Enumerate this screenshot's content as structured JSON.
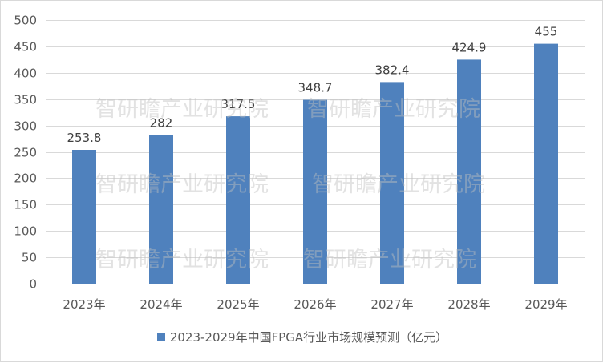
{
  "chart_data": {
    "type": "bar",
    "categories": [
      "2023年",
      "2024年",
      "2025年",
      "2026年",
      "2027年",
      "2028年",
      "2029年"
    ],
    "series": [
      {
        "name": "2023-2029年中国FPGA行业市场规模预测（亿元）",
        "values": [
          253.8,
          282,
          317.5,
          348.7,
          382.4,
          424.9,
          455
        ],
        "labels": [
          "253.8",
          "282",
          "317.5",
          "348.7",
          "382.4",
          "424.9",
          "455"
        ],
        "color": "#4f81bd"
      }
    ],
    "ylim": [
      0,
      500
    ],
    "yticks": [
      0,
      50,
      100,
      150,
      200,
      250,
      300,
      350,
      400,
      450,
      500
    ],
    "grid": true,
    "legend_position": "bottom"
  },
  "watermark": {
    "text": "智研瞻产业研究院",
    "color": "#bfbfbf"
  },
  "colors": {
    "gridline": "#d9d9d9",
    "axis_text": "#595959",
    "label_text": "#404040"
  }
}
